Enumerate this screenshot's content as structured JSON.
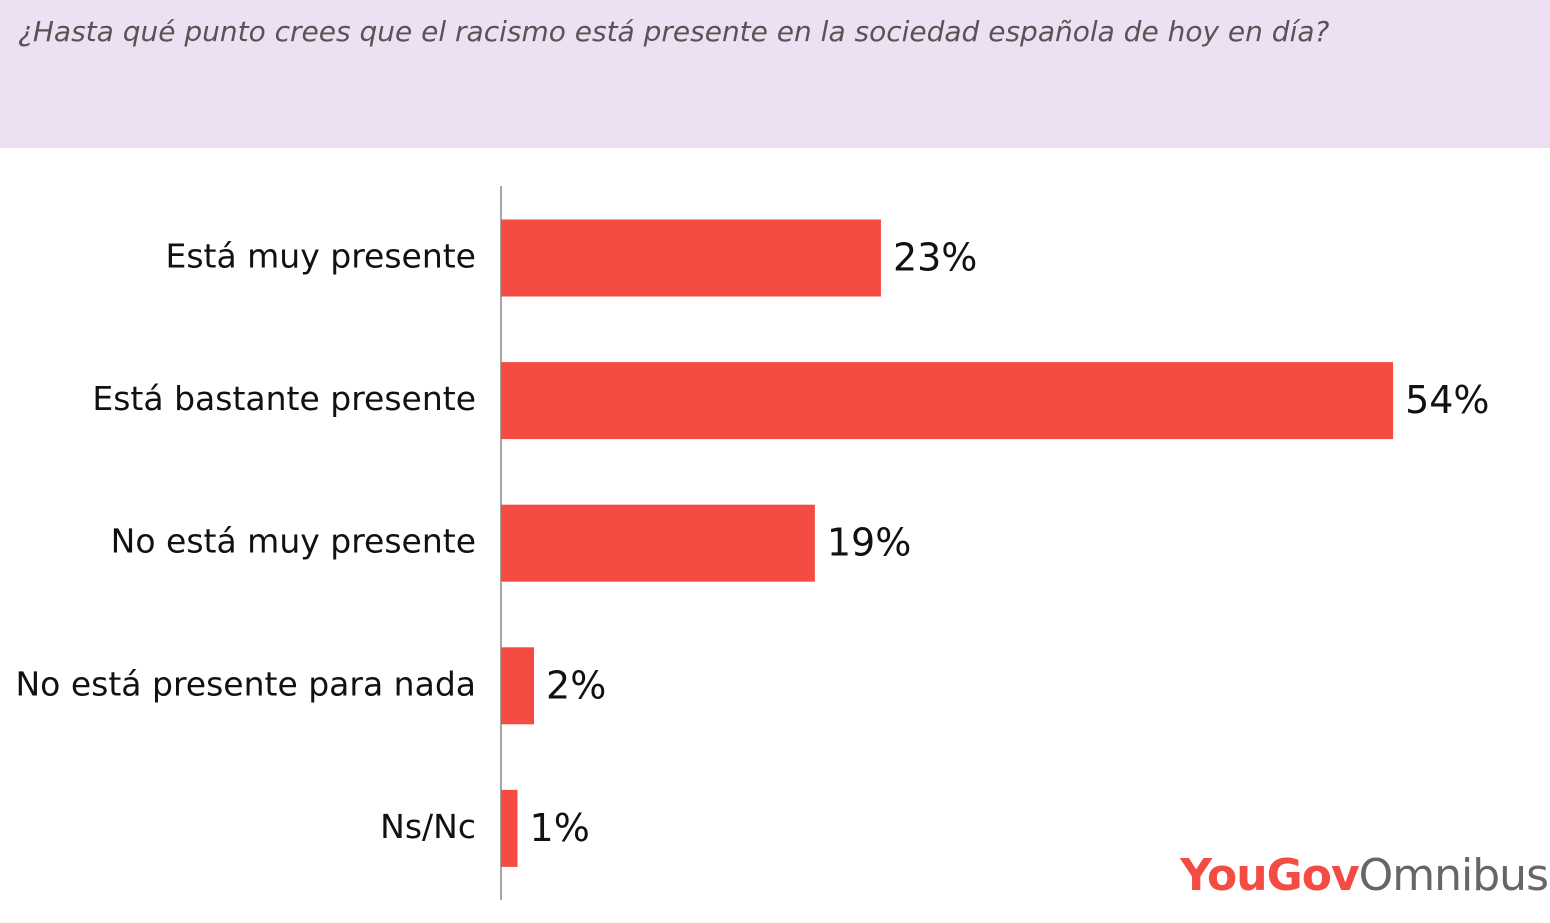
{
  "chart_data": {
    "type": "bar",
    "orientation": "horizontal",
    "title": "¿Hasta qué punto crees que el racismo está presente en la sociedad española de hoy en día?",
    "categories": [
      "Está muy presente",
      "Está bastante presente",
      "No está muy presente",
      "No está presente para nada",
      "Ns/Nc"
    ],
    "values": [
      23,
      54,
      19,
      2,
      1
    ],
    "value_labels": [
      "23%",
      "54%",
      "19%",
      "2%",
      "1%"
    ],
    "color": "#f44b42",
    "logo": {
      "brand": "YouGov",
      "product": "Omnibus"
    }
  }
}
